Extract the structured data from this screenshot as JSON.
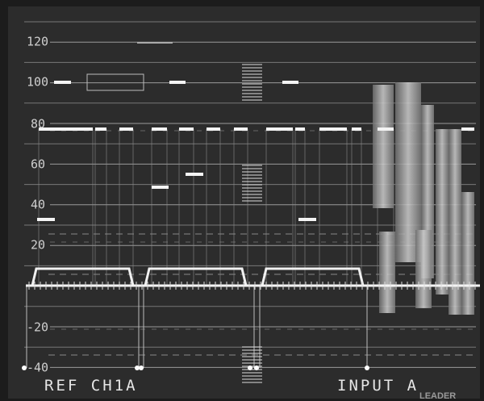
{
  "scale": [
    "120",
    "100",
    "80",
    "60",
    "40",
    "20",
    "-20",
    "-40"
  ],
  "footer": {
    "left": "REF CH1A",
    "right": "INPUT A"
  },
  "brand": "LEADER"
}
